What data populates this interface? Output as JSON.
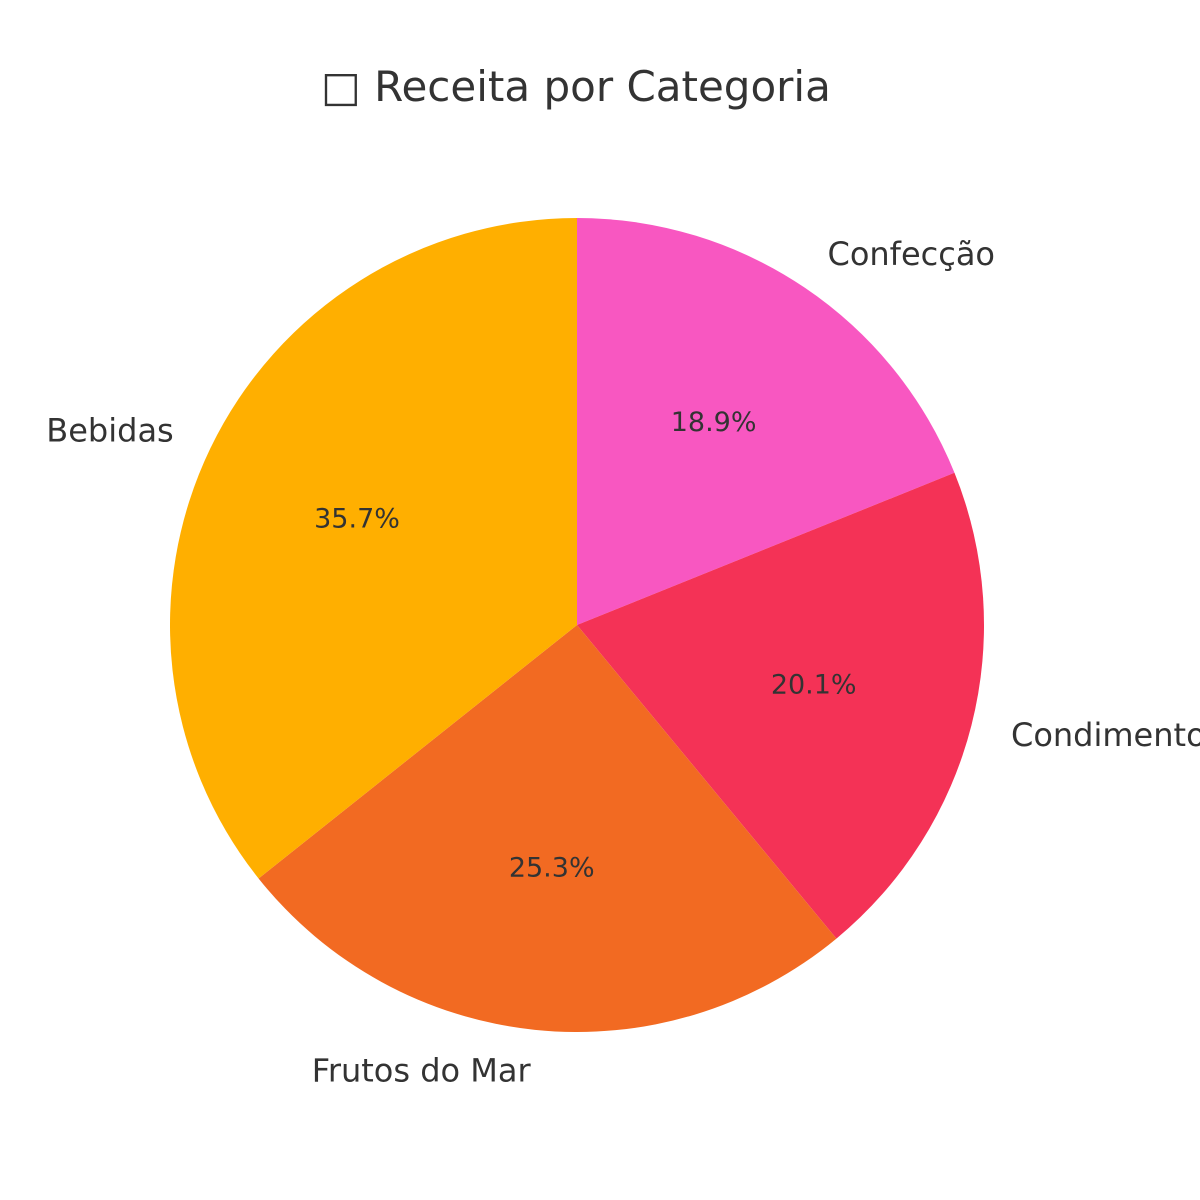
{
  "chart_data": {
    "type": "pie",
    "title": "□ Receita por Categoria",
    "start_angle_deg": 90,
    "direction": "clockwise",
    "legend": "none",
    "slices": [
      {
        "label": "Confecção",
        "value": 18.9,
        "display": "18.9%",
        "color": "#F857C1"
      },
      {
        "label": "Condimentos",
        "value": 20.1,
        "display": "20.1%",
        "color": "#F43256"
      },
      {
        "label": "Frutos do Mar",
        "value": 25.3,
        "display": "25.3%",
        "color": "#F26A22"
      },
      {
        "label": "Bebidas",
        "value": 35.7,
        "display": "35.7%",
        "color": "#FFAF00"
      }
    ]
  }
}
